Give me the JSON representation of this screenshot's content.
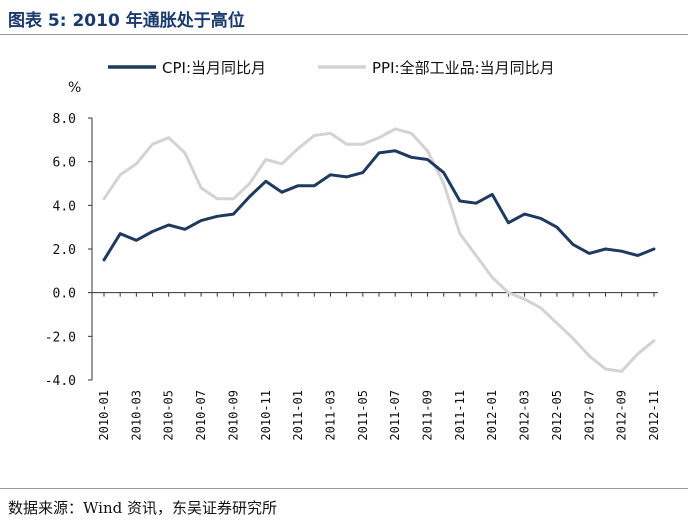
{
  "title": "图表 5:  2010 年通胀处于高位",
  "source": "数据来源：Wind 资讯，东吴证券研究所",
  "chart_data": {
    "type": "line",
    "title": "图表 5:  2010 年通胀处于高位",
    "ylabel": "%",
    "xlabel": "",
    "ylim": [
      -4.0,
      8.0
    ],
    "yticks": [
      "8.0",
      "6.0",
      "4.0",
      "2.0",
      "0.0",
      "-2.0",
      "-4.0"
    ],
    "yticks_values": [
      8,
      6,
      4,
      2,
      0,
      -2,
      -4
    ],
    "grid": false,
    "legend_position": "top",
    "categories": [
      "2010-01",
      "2010-02",
      "2010-03",
      "2010-04",
      "2010-05",
      "2010-06",
      "2010-07",
      "2010-08",
      "2010-09",
      "2010-10",
      "2010-11",
      "2010-12",
      "2011-01",
      "2011-02",
      "2011-03",
      "2011-04",
      "2011-05",
      "2011-06",
      "2011-07",
      "2011-08",
      "2011-09",
      "2011-10",
      "2011-11",
      "2011-12",
      "2012-01",
      "2012-02",
      "2012-03",
      "2012-04",
      "2012-05",
      "2012-06",
      "2012-07",
      "2012-08",
      "2012-09",
      "2012-10",
      "2012-11"
    ],
    "xtick_labels": [
      "2010-01",
      "2010-03",
      "2010-05",
      "2010-07",
      "2010-09",
      "2010-11",
      "2011-01",
      "2011-03",
      "2011-05",
      "2011-07",
      "2011-09",
      "2011-11",
      "2012-01",
      "2012-03",
      "2012-05",
      "2012-07",
      "2012-09",
      "2012-11"
    ],
    "series": [
      {
        "name": "CPI:当月同比月",
        "color": "#1f3a5f",
        "values": [
          1.5,
          2.7,
          2.4,
          2.8,
          3.1,
          2.9,
          3.3,
          3.5,
          3.6,
          4.4,
          5.1,
          4.6,
          4.9,
          4.9,
          5.4,
          5.3,
          5.5,
          6.4,
          6.5,
          6.2,
          6.1,
          5.5,
          4.2,
          4.1,
          4.5,
          3.2,
          3.6,
          3.4,
          3.0,
          2.2,
          1.8,
          2.0,
          1.9,
          1.7,
          2.0
        ]
      },
      {
        "name": "PPI:全部工业品:当月同比月",
        "color": "#d3d3d3",
        "values": [
          4.3,
          5.4,
          5.9,
          6.8,
          7.1,
          6.4,
          4.8,
          4.3,
          4.3,
          5.0,
          6.1,
          5.9,
          6.6,
          7.2,
          7.3,
          6.8,
          6.8,
          7.1,
          7.5,
          7.3,
          6.5,
          5.0,
          2.7,
          1.7,
          0.7,
          0.0,
          -0.3,
          -0.7,
          -1.4,
          -2.1,
          -2.9,
          -3.5,
          -3.6,
          -2.8,
          -2.2
        ]
      }
    ]
  }
}
